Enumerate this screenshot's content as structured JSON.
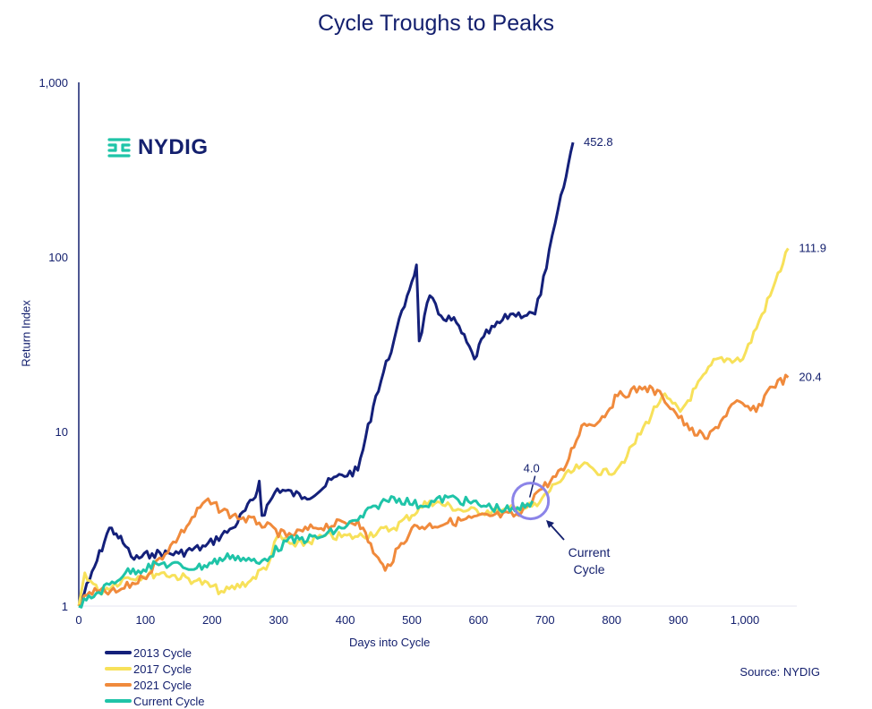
{
  "chart_data": {
    "type": "line",
    "title": "Cycle Troughs to Peaks",
    "xlabel": "Days into Cycle",
    "ylabel": "Return Index",
    "yscale": "log",
    "ylim": [
      1,
      1000
    ],
    "xlim": [
      0,
      1070
    ],
    "x_ticks": [
      "0",
      "100",
      "200",
      "300",
      "400",
      "500",
      "600",
      "700",
      "800",
      "900",
      "1,000"
    ],
    "x_tick_values": [
      0,
      100,
      200,
      300,
      400,
      500,
      600,
      700,
      800,
      900,
      1000
    ],
    "y_ticks": [
      "1",
      "10",
      "100",
      "1,000"
    ],
    "y_tick_values": [
      1,
      10,
      100,
      1000
    ],
    "legend_position": "bottom-left",
    "series": [
      {
        "name": "2013 Cycle",
        "color": "#14207a",
        "end_label": "452.8",
        "x": [
          0,
          16,
          46,
          56,
          70,
          83,
          110,
          150,
          190,
          231,
          265,
          271,
          275,
          298,
          339,
          366,
          379,
          419,
          446,
          473,
          493,
          507,
          511,
          527,
          540,
          567,
          594,
          608,
          648,
          685,
          702,
          715,
          728,
          742
        ],
        "y": [
          1,
          1.4,
          2.8,
          2.6,
          2.2,
          1.85,
          2.0,
          2.0,
          2.2,
          2.8,
          4.2,
          5.2,
          3.3,
          4.7,
          4.2,
          4.7,
          5.3,
          6.0,
          16,
          33,
          60,
          90,
          33,
          60,
          47,
          42,
          26,
          35,
          47,
          47,
          86,
          155,
          250,
          452.8
        ]
      },
      {
        "name": "2017 Cycle",
        "color": "#f7e15a",
        "end_label": "111.9",
        "x": [
          0,
          9,
          30,
          70,
          124,
          177,
          218,
          258,
          285,
          298,
          325,
          366,
          419,
          473,
          527,
          581,
          634,
          688,
          715,
          755,
          796,
          823,
          876,
          903,
          957,
          997,
          1038,
          1065
        ],
        "y": [
          1,
          1.55,
          1.2,
          1.45,
          1.55,
          1.4,
          1.2,
          1.4,
          1.75,
          2.5,
          2.2,
          2.5,
          2.5,
          2.8,
          4.0,
          3.5,
          3.5,
          3.75,
          5.0,
          6.4,
          5.7,
          7.2,
          16,
          13,
          26,
          26,
          60,
          111.9
        ]
      },
      {
        "name": "2021 Cycle",
        "color": "#f08a3c",
        "end_label": "20.4",
        "x": [
          0,
          16,
          56,
          97,
          150,
          190,
          231,
          271,
          312,
          352,
          419,
          446,
          460,
          500,
          554,
          621,
          661,
          688,
          728,
          755,
          782,
          809,
          850,
          876,
          917,
          944,
          984,
          1017,
          1038,
          1065
        ],
        "y": [
          1,
          1.2,
          1.2,
          1.45,
          2.5,
          4.0,
          3.3,
          3.0,
          2.5,
          2.8,
          3.1,
          1.95,
          1.6,
          2.8,
          3.0,
          3.3,
          3.3,
          4.5,
          6.0,
          10.8,
          11.5,
          16,
          18,
          16,
          10.2,
          9.1,
          14.6,
          13,
          18,
          20.4
        ]
      },
      {
        "name": "Current Cycle",
        "color": "#1fc4a8",
        "end_label": "4.0",
        "x": [
          0,
          30,
          70,
          124,
          177,
          231,
          271,
          312,
          366,
          419,
          446,
          473,
          513,
          554,
          608,
          655,
          681
        ],
        "y": [
          1,
          1.2,
          1.55,
          1.75,
          1.65,
          1.95,
          1.75,
          2.35,
          2.5,
          3.1,
          3.75,
          4.2,
          3.75,
          4.2,
          3.75,
          3.5,
          4.0
        ]
      }
    ],
    "annotation": "Current\nCycle",
    "annotation_lines": [
      "Current",
      "Cycle"
    ]
  },
  "logo": "NYDIG",
  "source": "Source: NYDIG"
}
